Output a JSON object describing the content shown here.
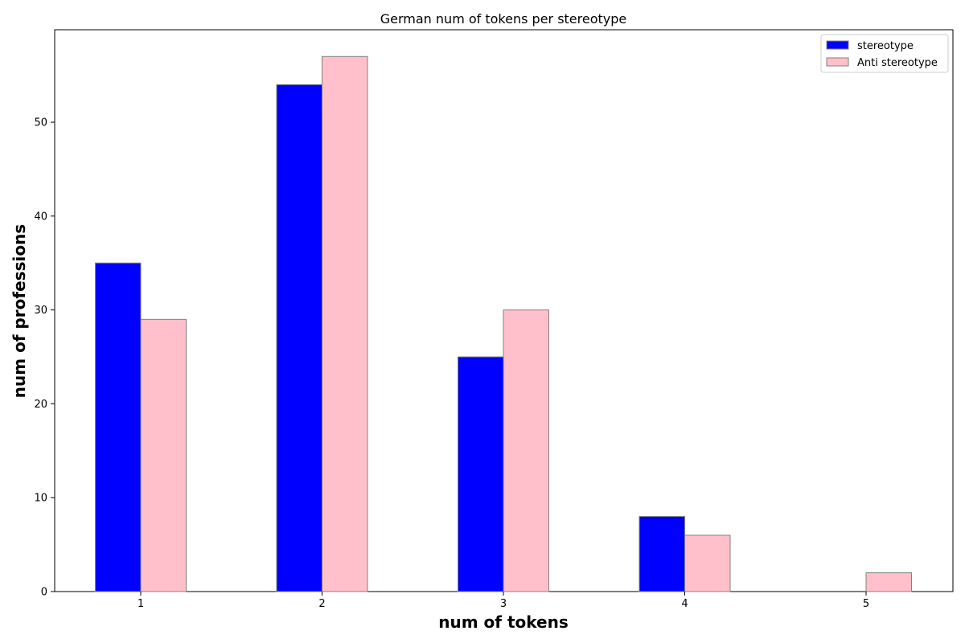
{
  "chart_data": {
    "type": "bar",
    "title": "German num of tokens per stereotype",
    "xlabel": "num of tokens",
    "ylabel": "num of professions",
    "categories": [
      "1",
      "2",
      "3",
      "4",
      "5"
    ],
    "series": [
      {
        "name": "stereotype",
        "values": [
          35,
          54,
          25,
          8,
          0
        ],
        "color": "#0000ff"
      },
      {
        "name": "Anti stereotype",
        "values": [
          29,
          57,
          30,
          6,
          2
        ],
        "color": "#ffc0cb"
      }
    ],
    "edge_color": "#808080",
    "yticks": [
      0,
      10,
      20,
      30,
      40,
      50
    ],
    "ylim": [
      0,
      59.85
    ],
    "legend_position": "top-right",
    "grid": false
  }
}
